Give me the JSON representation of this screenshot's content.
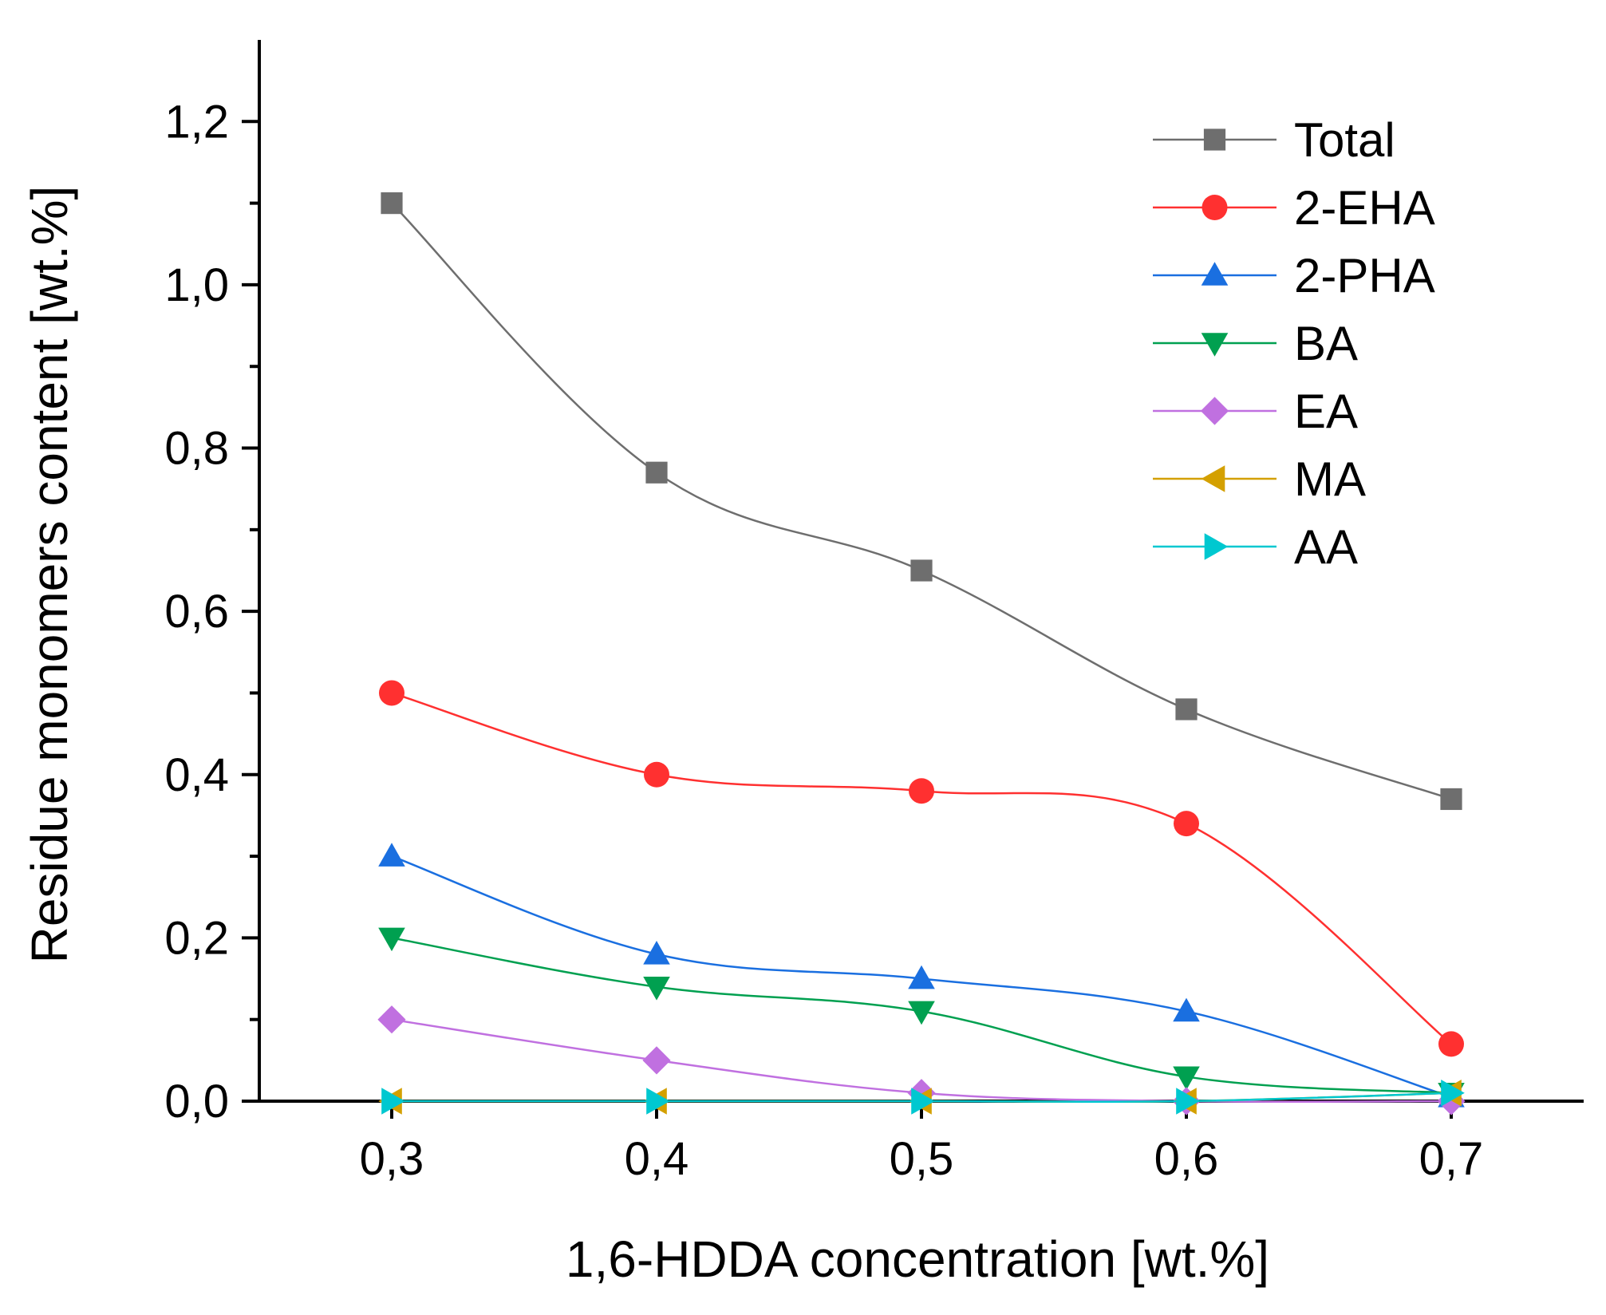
{
  "chart_data": {
    "type": "line",
    "title": "",
    "xlabel": "1,6-HDDA  concentration [wt.%]",
    "ylabel": "Residue monomers content [wt.%]",
    "x": [
      0.3,
      0.4,
      0.5,
      0.6,
      0.7
    ],
    "x_tick_labels": [
      "0,3",
      "0,4",
      "0,5",
      "0,6",
      "0,7"
    ],
    "y_tick_values": [
      0.0,
      0.2,
      0.4,
      0.6,
      0.8,
      1.0,
      1.2
    ],
    "y_tick_labels": [
      "0,0",
      "0,2",
      "0,4",
      "0,6",
      "0,8",
      "1,0",
      "1,2"
    ],
    "xlim": [
      0.25,
      0.75
    ],
    "ylim": [
      0.0,
      1.3
    ],
    "grid": false,
    "legend_position": "top-right",
    "series": [
      {
        "name": "Total",
        "marker": "square",
        "color": "#6e6e6e",
        "values": [
          1.1,
          0.77,
          0.65,
          0.48,
          0.37
        ]
      },
      {
        "name": "2-EHA",
        "marker": "circle",
        "color": "#ff3030",
        "values": [
          0.5,
          0.4,
          0.38,
          0.34,
          0.07
        ]
      },
      {
        "name": "2-PHA",
        "marker": "triangle-up",
        "color": "#1a6fe0",
        "values": [
          0.3,
          0.18,
          0.15,
          0.11,
          0.005
        ]
      },
      {
        "name": "BA",
        "marker": "triangle-down",
        "color": "#00a050",
        "values": [
          0.2,
          0.14,
          0.11,
          0.03,
          0.01
        ]
      },
      {
        "name": "EA",
        "marker": "diamond",
        "color": "#c070e0",
        "values": [
          0.1,
          0.05,
          0.01,
          0.0,
          0.0
        ]
      },
      {
        "name": "MA",
        "marker": "triangle-left",
        "color": "#d4a000",
        "values": [
          0.0,
          0.0,
          0.0,
          0.0,
          0.01
        ]
      },
      {
        "name": "AA",
        "marker": "triangle-right",
        "color": "#00c8d0",
        "values": [
          0.0,
          0.0,
          0.0,
          0.0,
          0.01
        ]
      }
    ]
  }
}
